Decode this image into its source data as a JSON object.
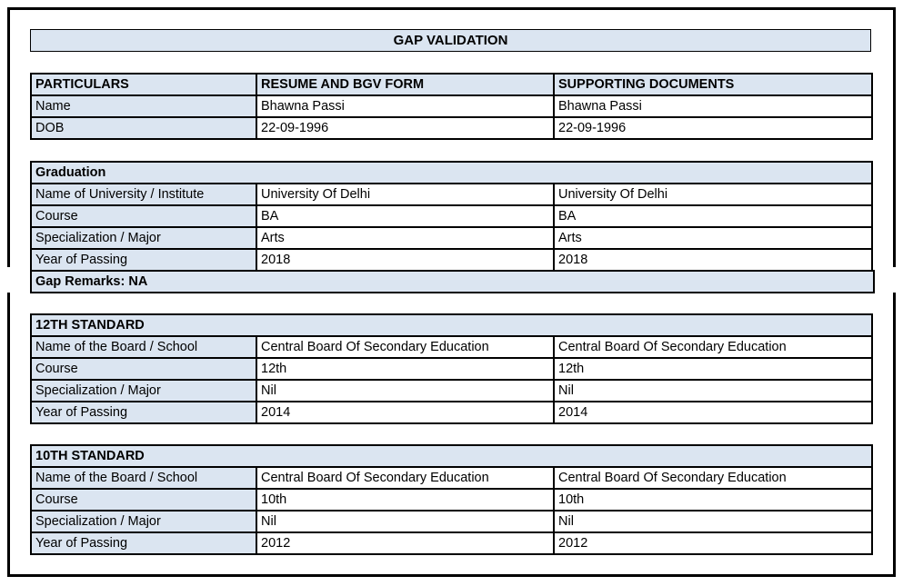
{
  "title": "GAP VALIDATION",
  "particulars": {
    "headers": [
      "PARTICULARS",
      "RESUME AND BGV FORM",
      "SUPPORTING DOCUMENTS"
    ],
    "rows": [
      {
        "label": "Name",
        "resume": "Bhawna Passi",
        "supporting": "Bhawna Passi"
      },
      {
        "label": "DOB",
        "resume": "22-09-1996",
        "supporting": "22-09-1996"
      }
    ]
  },
  "sections": [
    {
      "title": "Graduation",
      "rows": [
        {
          "label": "Name of University / Institute",
          "resume": "University Of Delhi",
          "supporting": "University Of Delhi"
        },
        {
          "label": "Course",
          "resume": "BA",
          "supporting": "BA"
        },
        {
          "label": "Specialization / Major",
          "resume": "Arts",
          "supporting": "Arts"
        },
        {
          "label": "Year of Passing",
          "resume": "2018",
          "supporting": "2018"
        }
      ],
      "gap_remarks": "Gap Remarks: NA"
    },
    {
      "title": "12TH STANDARD",
      "rows": [
        {
          "label": "Name of the Board / School",
          "resume": "Central Board Of Secondary Education",
          "supporting": "Central Board Of Secondary Education"
        },
        {
          "label": "Course",
          "resume": "12th",
          "supporting": "12th"
        },
        {
          "label": "Specialization / Major",
          "resume": "Nil",
          "supporting": "Nil"
        },
        {
          "label": "Year of Passing",
          "resume": "2014",
          "supporting": "2014"
        }
      ]
    },
    {
      "title": "10TH STANDARD",
      "rows": [
        {
          "label": "Name of the Board / School",
          "resume": "Central Board Of Secondary Education",
          "supporting": "Central Board Of Secondary Education"
        },
        {
          "label": "Course",
          "resume": "10th",
          "supporting": "10th"
        },
        {
          "label": "Specialization / Major",
          "resume": "Nil",
          "supporting": "Nil"
        },
        {
          "label": "Year of Passing",
          "resume": "2012",
          "supporting": "2012"
        }
      ]
    }
  ],
  "colors": {
    "header_fill": "#dbe5f1",
    "border": "#000000",
    "text": "#000000",
    "page_bg": "#ffffff"
  }
}
